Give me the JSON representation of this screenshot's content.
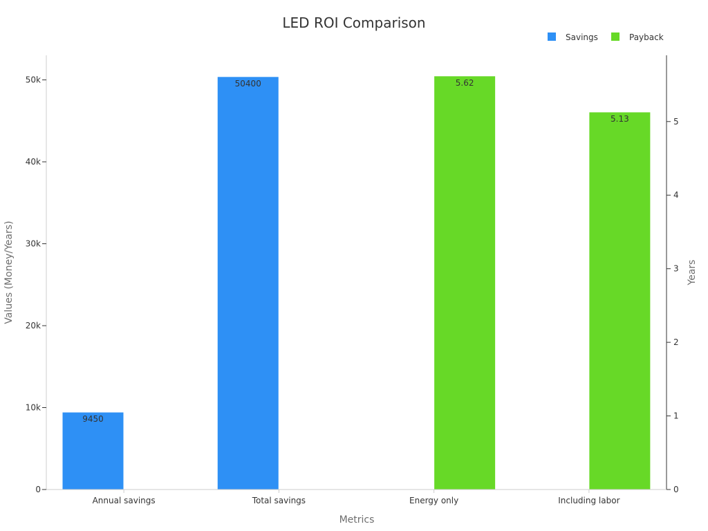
{
  "chart_data": {
    "type": "bar",
    "title": "LED ROI Comparison",
    "xlabel": "Metrics",
    "ylabel": "Values (Money/Years)",
    "y2label": "Years",
    "categories": [
      "Annual savings",
      "Total savings",
      "Energy only",
      "Including labor"
    ],
    "series": [
      {
        "name": "Savings",
        "axis": "left",
        "color": "#2e90f5",
        "values": [
          9450,
          50400,
          null,
          null
        ]
      },
      {
        "name": "Payback",
        "axis": "right",
        "color": "#67d927",
        "values": [
          null,
          null,
          5.62,
          5.13
        ]
      }
    ],
    "ylim": [
      0,
      53000
    ],
    "y2lim": [
      0,
      5.9
    ],
    "yticks": [
      0,
      10000,
      20000,
      30000,
      40000,
      50000
    ],
    "yticklabels": [
      "0",
      "10k",
      "20k",
      "30k",
      "40k",
      "50k"
    ],
    "y2ticks": [
      0,
      1,
      2,
      3,
      4,
      5
    ],
    "y2ticklabels": [
      "0",
      "1",
      "2",
      "3",
      "4",
      "5"
    ],
    "legend_position": "top-right",
    "grid": false
  }
}
